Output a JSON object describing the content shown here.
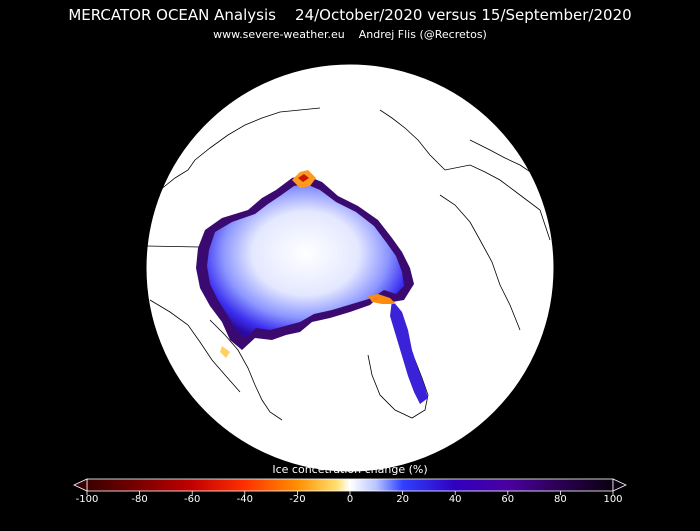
{
  "header": {
    "title": "MERCATOR OCEAN Analysis    24/October/2020 versus 15/September/2020",
    "subtitle": "www.severe-weather.eu    Andrej Flis (@Recretos)"
  },
  "colorbar": {
    "title": "Ice concetration change (%)",
    "ticks": [
      "-100",
      "-80",
      "-60",
      "-40",
      "-20",
      "0",
      "20",
      "40",
      "60",
      "80",
      "100"
    ],
    "range": [
      -100,
      100
    ],
    "stops": [
      {
        "value": -100,
        "color": "#3a0000"
      },
      {
        "value": -80,
        "color": "#7a0000"
      },
      {
        "value": -60,
        "color": "#c40000"
      },
      {
        "value": -40,
        "color": "#ff3000"
      },
      {
        "value": -20,
        "color": "#ff9000"
      },
      {
        "value": -5,
        "color": "#ffe070"
      },
      {
        "value": 0,
        "color": "#ffffff"
      },
      {
        "value": 10,
        "color": "#b8c4ff"
      },
      {
        "value": 20,
        "color": "#3040ff"
      },
      {
        "value": 40,
        "color": "#3000c0"
      },
      {
        "value": 60,
        "color": "#4a00a0"
      },
      {
        "value": 80,
        "color": "#2a0050"
      },
      {
        "value": 100,
        "color": "#0a0010"
      }
    ]
  },
  "map": {
    "projection": "north-polar-stereographic",
    "background_color": "#ffffff",
    "coastline_color": "#000000"
  }
}
